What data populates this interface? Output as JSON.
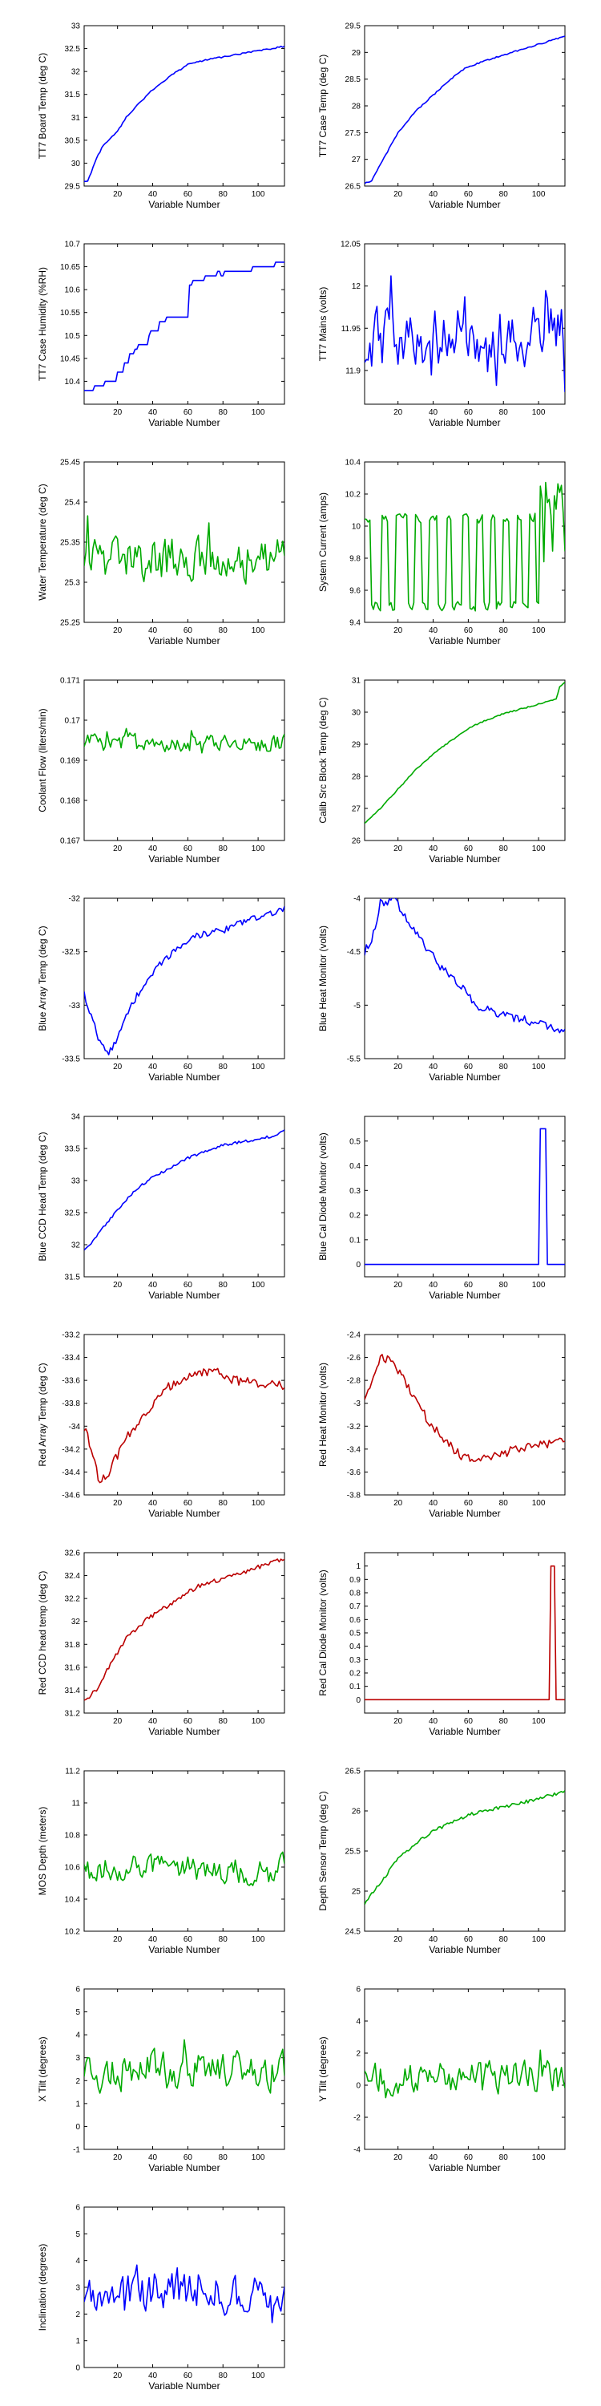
{
  "figure": {
    "axis_color": "#000000",
    "colors": {
      "blue": "#0000ff",
      "green": "#00aa00",
      "red": "#bb0000"
    }
  },
  "chart_data": [
    {
      "type": "line",
      "xlabel": "Variable Number",
      "ylabel": "TT7 Board Temp (deg C)",
      "color": "blue",
      "xlim": [
        1,
        115
      ],
      "xticks": [
        20,
        40,
        60,
        80,
        100
      ],
      "ylim": [
        29.5,
        33
      ],
      "yticks": [
        "29.5",
        "30",
        "30.5",
        "31",
        "31.5",
        "32",
        "32.5",
        "33"
      ],
      "shape": "anchors",
      "anchors": [
        [
          1,
          29.6
        ],
        [
          3,
          29.6
        ],
        [
          8,
          30.1
        ],
        [
          12,
          30.4
        ],
        [
          20,
          30.7
        ],
        [
          25,
          31.0
        ],
        [
          32,
          31.3
        ],
        [
          40,
          31.6
        ],
        [
          50,
          31.9
        ],
        [
          58,
          32.1
        ],
        [
          60,
          32.15
        ],
        [
          70,
          32.25
        ],
        [
          85,
          32.35
        ],
        [
          100,
          32.45
        ],
        [
          115,
          32.55
        ]
      ],
      "noise": 0.015
    },
    {
      "type": "line",
      "xlabel": "Variable Number",
      "ylabel": "TT7 Case Temp (deg C)",
      "color": "blue",
      "xlim": [
        1,
        115
      ],
      "xticks": [
        20,
        40,
        60,
        80,
        100
      ],
      "ylim": [
        26.5,
        29.5
      ],
      "yticks": [
        "26.5",
        "27",
        "27.5",
        "28",
        "28.5",
        "29",
        "29.5"
      ],
      "shape": "anchors",
      "anchors": [
        [
          1,
          26.55
        ],
        [
          5,
          26.6
        ],
        [
          10,
          26.9
        ],
        [
          20,
          27.5
        ],
        [
          30,
          27.9
        ],
        [
          40,
          28.2
        ],
        [
          50,
          28.5
        ],
        [
          58,
          28.7
        ],
        [
          62,
          28.75
        ],
        [
          70,
          28.85
        ],
        [
          85,
          29.0
        ],
        [
          100,
          29.15
        ],
        [
          115,
          29.3
        ]
      ],
      "noise": 0.012
    },
    {
      "type": "line",
      "xlabel": "Variable Number",
      "ylabel": "TT7 Case Humidity (%RH)",
      "color": "blue",
      "xlim": [
        1,
        115
      ],
      "xticks": [
        20,
        40,
        60,
        80,
        100
      ],
      "ylim": [
        10.35,
        10.7
      ],
      "yticks": [
        "10.4",
        "10.45",
        "10.5",
        "10.55",
        "10.6",
        "10.65",
        "10.7"
      ],
      "shape": "steps",
      "anchors": [
        [
          1,
          10.38
        ],
        [
          15,
          10.4
        ],
        [
          22,
          10.43
        ],
        [
          30,
          10.47
        ],
        [
          38,
          10.5
        ],
        [
          42,
          10.52
        ],
        [
          50,
          10.55
        ],
        [
          55,
          10.58
        ],
        [
          60,
          10.6
        ],
        [
          65,
          10.62
        ],
        [
          72,
          10.63
        ],
        [
          85,
          10.64
        ],
        [
          100,
          10.645
        ],
        [
          115,
          10.66
        ]
      ],
      "stepdelta": 0.01
    },
    {
      "type": "line",
      "xlabel": "Variable Number",
      "ylabel": "TT7 Mains  (volts)",
      "color": "blue",
      "xlim": [
        1,
        115
      ],
      "xticks": [
        20,
        40,
        60,
        80,
        100
      ],
      "ylim": [
        11.86,
        12.05
      ],
      "yticks": [
        "11.9",
        "11.95",
        "12",
        "12.05"
      ],
      "shape": "noise",
      "mean": 11.94,
      "amp": 0.05,
      "low": 11.87,
      "high": 12.02
    },
    {
      "type": "line",
      "xlabel": "Variable Number",
      "ylabel": "Water Temperature (deg C)",
      "color": "green",
      "xlim": [
        1,
        115
      ],
      "xticks": [
        20,
        40,
        60,
        80,
        100
      ],
      "ylim": [
        25.25,
        25.45
      ],
      "yticks": [
        "25.25",
        "25.3",
        "25.35",
        "25.4",
        "25.45"
      ],
      "shape": "noise",
      "mean": 25.33,
      "amp": 0.04,
      "low": 25.265,
      "high": 25.405
    },
    {
      "type": "line",
      "xlabel": "Variable Number",
      "ylabel": "System Current (amps)",
      "color": "green",
      "xlim": [
        1,
        115
      ],
      "xticks": [
        20,
        40,
        60,
        80,
        100
      ],
      "ylim": [
        9.4,
        10.4
      ],
      "yticks": [
        "9.4",
        "9.6",
        "9.8",
        "10",
        "10.2",
        "10.4"
      ],
      "shape": "square",
      "levels": [
        9.5,
        10.05
      ],
      "low": 9.45,
      "high": 10.28
    },
    {
      "type": "line",
      "xlabel": "Variable Number",
      "ylabel": "Coolant Flow (liters/min)",
      "color": "green",
      "xlim": [
        1,
        115
      ],
      "xticks": [
        20,
        40,
        60,
        80,
        100
      ],
      "ylim": [
        0.167,
        0.171
      ],
      "yticks": [
        "0.167",
        "0.168",
        "0.169",
        "0.17",
        "0.171"
      ],
      "shape": "noise",
      "mean": 0.16945,
      "amp": 0.0003,
      "low": 0.1681,
      "high": 0.1706,
      "trend": -0.004
    },
    {
      "type": "line",
      "xlabel": "Variable Number",
      "ylabel": "Calib Src Block Temp (deg C)",
      "color": "green",
      "xlim": [
        1,
        115
      ],
      "xticks": [
        20,
        40,
        60,
        80,
        100
      ],
      "ylim": [
        26,
        31
      ],
      "yticks": [
        "26",
        "27",
        "28",
        "29",
        "30",
        "31"
      ],
      "shape": "anchors",
      "anchors": [
        [
          1,
          26.55
        ],
        [
          10,
          27.0
        ],
        [
          20,
          27.6
        ],
        [
          30,
          28.2
        ],
        [
          40,
          28.7
        ],
        [
          50,
          29.1
        ],
        [
          60,
          29.5
        ],
        [
          70,
          29.75
        ],
        [
          80,
          29.95
        ],
        [
          90,
          30.1
        ],
        [
          100,
          30.25
        ],
        [
          110,
          30.4
        ],
        [
          112,
          30.8
        ],
        [
          115,
          30.95
        ]
      ],
      "noise": 0.02
    },
    {
      "type": "line",
      "xlabel": "Variable Number",
      "ylabel": "Blue Array Temp (deg C)",
      "color": "blue",
      "xlim": [
        1,
        115
      ],
      "xticks": [
        20,
        40,
        60,
        80,
        100
      ],
      "ylim": [
        -33.5,
        -32
      ],
      "yticks": [
        "-33.5",
        "-33",
        "-32.5",
        "-32"
      ],
      "shape": "anchors",
      "anchors": [
        [
          1,
          -32.9
        ],
        [
          5,
          -33.1
        ],
        [
          10,
          -33.35
        ],
        [
          15,
          -33.45
        ],
        [
          20,
          -33.3
        ],
        [
          28,
          -33.0
        ],
        [
          35,
          -32.8
        ],
        [
          45,
          -32.6
        ],
        [
          55,
          -32.45
        ],
        [
          65,
          -32.35
        ],
        [
          80,
          -32.3
        ],
        [
          95,
          -32.2
        ],
        [
          105,
          -32.15
        ],
        [
          115,
          -32.1
        ]
      ],
      "noise": 0.03
    },
    {
      "type": "line",
      "xlabel": "Variable Number",
      "ylabel": "Blue Heat Monitor (volts)",
      "color": "blue",
      "xlim": [
        1,
        115
      ],
      "xticks": [
        20,
        40,
        60,
        80,
        100
      ],
      "ylim": [
        -5.5,
        -4
      ],
      "yticks": [
        "-5.5",
        "-5",
        "-4.5",
        "-4"
      ],
      "shape": "anchors",
      "anchors": [
        [
          1,
          -4.5
        ],
        [
          5,
          -4.4
        ],
        [
          10,
          -4.05
        ],
        [
          18,
          -4.0
        ],
        [
          25,
          -4.2
        ],
        [
          35,
          -4.45
        ],
        [
          45,
          -4.65
        ],
        [
          55,
          -4.8
        ],
        [
          65,
          -5.0
        ],
        [
          80,
          -5.1
        ],
        [
          95,
          -5.15
        ],
        [
          105,
          -5.2
        ],
        [
          115,
          -5.25
        ]
      ],
      "noise": 0.04
    },
    {
      "type": "line",
      "xlabel": "Variable Number",
      "ylabel": "Blue CCD Head Temp (deg C)",
      "color": "blue",
      "xlim": [
        1,
        115
      ],
      "xticks": [
        20,
        40,
        60,
        80,
        100
      ],
      "ylim": [
        31.5,
        34
      ],
      "yticks": [
        "31.5",
        "32",
        "32.5",
        "33",
        "33.5",
        "34"
      ],
      "shape": "anchors",
      "anchors": [
        [
          1,
          31.9
        ],
        [
          10,
          32.2
        ],
        [
          20,
          32.55
        ],
        [
          30,
          32.85
        ],
        [
          40,
          33.05
        ],
        [
          50,
          33.2
        ],
        [
          60,
          33.35
        ],
        [
          70,
          33.45
        ],
        [
          80,
          33.55
        ],
        [
          90,
          33.6
        ],
        [
          100,
          33.65
        ],
        [
          110,
          33.7
        ],
        [
          115,
          33.78
        ]
      ],
      "noise": 0.02
    },
    {
      "type": "line",
      "xlabel": "Variable Number",
      "ylabel": "Blue Cal Diode Monitor (volts)",
      "color": "blue",
      "xlim": [
        1,
        115
      ],
      "xticks": [
        20,
        40,
        60,
        80,
        100
      ],
      "ylim": [
        -0.05,
        0.6
      ],
      "yticks": [
        "0",
        "0.1",
        "0.2",
        "0.3",
        "0.4",
        "0.5"
      ],
      "shape": "spike",
      "base": 0,
      "spike_start": 101,
      "spike_end": 104,
      "spike_value": 0.55
    },
    {
      "type": "line",
      "xlabel": "Variable Number",
      "ylabel": "Red Array Temp (deg C)",
      "color": "red",
      "xlim": [
        1,
        115
      ],
      "xticks": [
        20,
        40,
        60,
        80,
        100
      ],
      "ylim": [
        -34.6,
        -33.2
      ],
      "yticks": [
        "-34.6",
        "-34.4",
        "-34.2",
        "-34",
        "-33.8",
        "-33.6",
        "-33.4",
        "-33.2"
      ],
      "shape": "anchors",
      "anchors": [
        [
          1,
          -34.0
        ],
        [
          5,
          -34.2
        ],
        [
          10,
          -34.5
        ],
        [
          15,
          -34.4
        ],
        [
          25,
          -34.1
        ],
        [
          35,
          -33.9
        ],
        [
          45,
          -33.7
        ],
        [
          55,
          -33.6
        ],
        [
          65,
          -33.55
        ],
        [
          75,
          -33.5
        ],
        [
          85,
          -33.6
        ],
        [
          100,
          -33.62
        ],
        [
          115,
          -33.65
        ]
      ],
      "noise": 0.04
    },
    {
      "type": "line",
      "xlabel": "Variable Number",
      "ylabel": "Red Heat Monitor (volts)",
      "color": "red",
      "xlim": [
        1,
        115
      ],
      "xticks": [
        20,
        40,
        60,
        80,
        100
      ],
      "ylim": [
        -3.8,
        -2.4
      ],
      "yticks": [
        "-3.8",
        "-3.6",
        "-3.4",
        "-3.2",
        "-3",
        "-2.8",
        "-2.6",
        "-2.4"
      ],
      "shape": "anchors",
      "anchors": [
        [
          1,
          -2.95
        ],
        [
          5,
          -2.8
        ],
        [
          10,
          -2.6
        ],
        [
          18,
          -2.65
        ],
        [
          25,
          -2.85
        ],
        [
          35,
          -3.1
        ],
        [
          45,
          -3.3
        ],
        [
          55,
          -3.45
        ],
        [
          65,
          -3.5
        ],
        [
          75,
          -3.45
        ],
        [
          90,
          -3.4
        ],
        [
          105,
          -3.35
        ],
        [
          115,
          -3.3
        ]
      ],
      "noise": 0.04
    },
    {
      "type": "line",
      "xlabel": "Variable Number",
      "ylabel": "Red CCD head temp (deg C)",
      "color": "red",
      "xlim": [
        1,
        115
      ],
      "xticks": [
        20,
        40,
        60,
        80,
        100
      ],
      "ylim": [
        31.2,
        32.6
      ],
      "yticks": [
        "31.2",
        "31.4",
        "31.6",
        "31.8",
        "32",
        "32.2",
        "32.4",
        "32.6"
      ],
      "shape": "anchors",
      "anchors": [
        [
          1,
          31.3
        ],
        [
          8,
          31.4
        ],
        [
          15,
          31.6
        ],
        [
          25,
          31.85
        ],
        [
          35,
          32.0
        ],
        [
          45,
          32.1
        ],
        [
          55,
          32.2
        ],
        [
          65,
          32.3
        ],
        [
          75,
          32.35
        ],
        [
          85,
          32.4
        ],
        [
          95,
          32.45
        ],
        [
          105,
          32.5
        ],
        [
          115,
          32.55
        ]
      ],
      "noise": 0.02
    },
    {
      "type": "line",
      "xlabel": "Variable Number",
      "ylabel": "Red Cal Diode Monitor (volts)",
      "color": "red",
      "xlim": [
        1,
        115
      ],
      "xticks": [
        20,
        40,
        60,
        80,
        100
      ],
      "ylim": [
        -0.1,
        1.1
      ],
      "yticks": [
        "0",
        "0.1",
        "0.2",
        "0.3",
        "0.4",
        "0.5",
        "0.6",
        "0.7",
        "0.8",
        "0.9",
        "1"
      ],
      "shape": "spike",
      "base": 0,
      "spike_start": 107,
      "spike_end": 109,
      "spike_value": 1.0
    },
    {
      "type": "line",
      "xlabel": "Variable Number",
      "ylabel": "MOS Depth  (meters)",
      "color": "green",
      "xlim": [
        1,
        115
      ],
      "xticks": [
        20,
        40,
        60,
        80,
        100
      ],
      "ylim": [
        10.2,
        11.2
      ],
      "yticks": [
        "10.2",
        "10.4",
        "10.6",
        "10.8",
        "11",
        "11.2"
      ],
      "shape": "noise",
      "mean": 10.58,
      "amp": 0.12,
      "low": 10.28,
      "high": 10.92
    },
    {
      "type": "line",
      "xlabel": "Variable Number",
      "ylabel": "Depth Sensor Temp (deg C)",
      "color": "green",
      "xlim": [
        1,
        115
      ],
      "xticks": [
        20,
        40,
        60,
        80,
        100
      ],
      "ylim": [
        24.5,
        26.5
      ],
      "yticks": [
        "24.5",
        "25",
        "25.5",
        "26",
        "26.5"
      ],
      "shape": "anchors",
      "anchors": [
        [
          1,
          24.85
        ],
        [
          10,
          25.1
        ],
        [
          20,
          25.4
        ],
        [
          30,
          25.6
        ],
        [
          40,
          25.75
        ],
        [
          50,
          25.85
        ],
        [
          60,
          25.95
        ],
        [
          70,
          26.0
        ],
        [
          80,
          26.05
        ],
        [
          90,
          26.1
        ],
        [
          100,
          26.15
        ],
        [
          115,
          26.25
        ]
      ],
      "noise": 0.02
    },
    {
      "type": "line",
      "xlabel": "Variable Number",
      "ylabel": "X Tilt  (degrees)",
      "color": "green",
      "xlim": [
        1,
        115
      ],
      "xticks": [
        20,
        40,
        60,
        80,
        100
      ],
      "ylim": [
        -1,
        6
      ],
      "yticks": [
        "-1",
        "0",
        "1",
        "2",
        "3",
        "4",
        "5",
        "6"
      ],
      "shape": "noise",
      "mean": 2.4,
      "amp": 1.1,
      "low": -0.6,
      "high": 5.6
    },
    {
      "type": "line",
      "xlabel": "Variable Number",
      "ylabel": "Y Tilt  (degrees)",
      "color": "green",
      "xlim": [
        1,
        115
      ],
      "xticks": [
        20,
        40,
        60,
        80,
        100
      ],
      "ylim": [
        -4,
        6
      ],
      "yticks": [
        "-4",
        "-2",
        "0",
        "2",
        "4",
        "6"
      ],
      "shape": "noise",
      "mean": 0.5,
      "amp": 1.3,
      "low": -2.8,
      "high": 4.6
    },
    {
      "type": "line",
      "xlabel": "Variable Number",
      "ylabel": "Inclination  (degrees)",
      "color": "blue",
      "xlim": [
        1,
        115
      ],
      "xticks": [
        20,
        40,
        60,
        80,
        100
      ],
      "ylim": [
        0,
        6
      ],
      "yticks": [
        "0",
        "1",
        "2",
        "3",
        "4",
        "5",
        "6"
      ],
      "shape": "noise",
      "mean": 2.8,
      "amp": 1.0,
      "low": 0.7,
      "high": 5.6
    }
  ]
}
